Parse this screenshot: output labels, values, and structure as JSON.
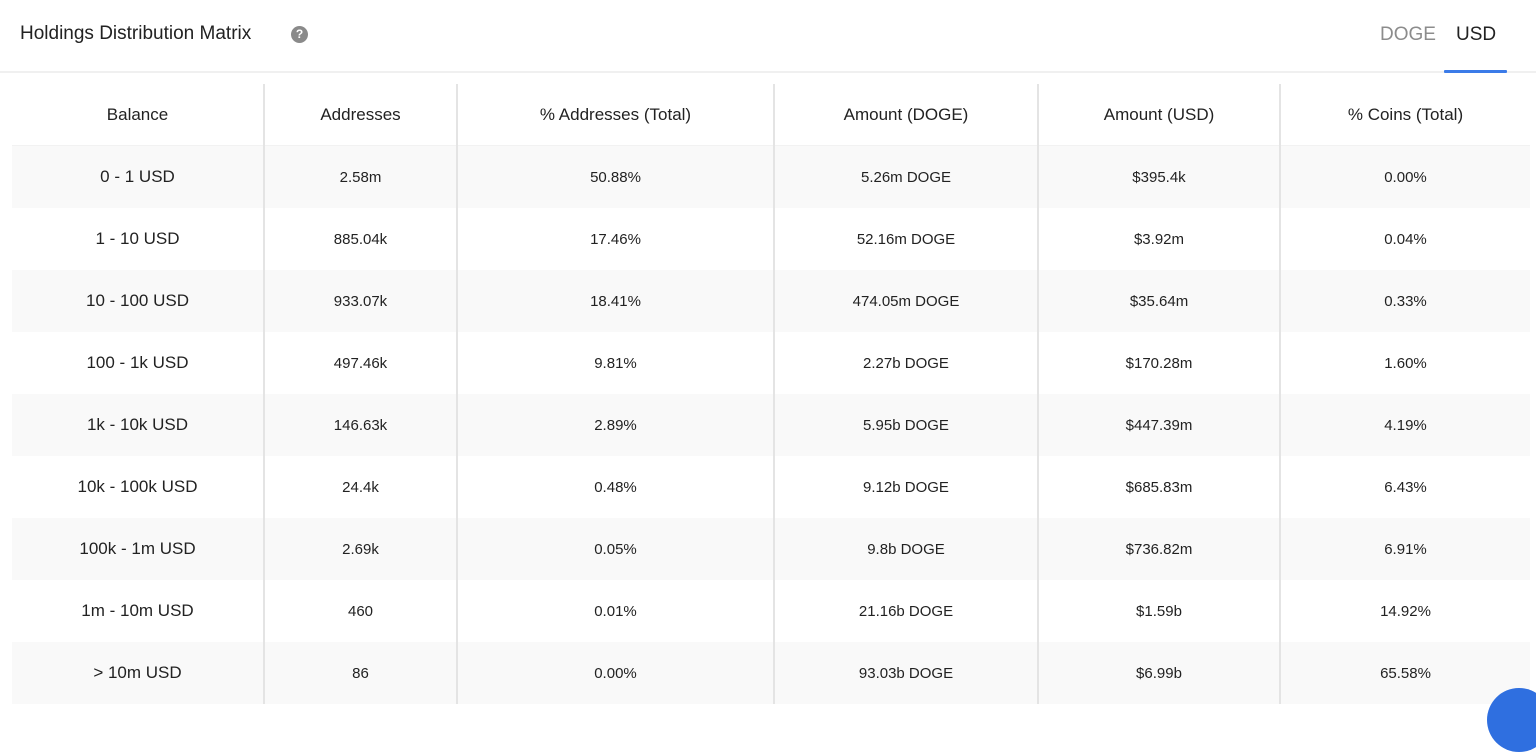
{
  "header": {
    "title": "Holdings Distribution Matrix",
    "help_icon": "question-circle-icon",
    "tabs": [
      {
        "label": "DOGE",
        "active": false
      },
      {
        "label": "USD",
        "active": true
      }
    ],
    "accent": "#3b7be8"
  },
  "table": {
    "columns": [
      "Balance",
      "Addresses",
      "% Addresses (Total)",
      "Amount (DOGE)",
      "Amount (USD)",
      "% Coins (Total)"
    ],
    "rows": [
      [
        "0 - 1 USD",
        "2.58m",
        "50.88%",
        "5.26m DOGE",
        "$395.4k",
        "0.00%"
      ],
      [
        "1 - 10 USD",
        "885.04k",
        "17.46%",
        "52.16m DOGE",
        "$3.92m",
        "0.04%"
      ],
      [
        "10 - 100 USD",
        "933.07k",
        "18.41%",
        "474.05m DOGE",
        "$35.64m",
        "0.33%"
      ],
      [
        "100 - 1k USD",
        "497.46k",
        "9.81%",
        "2.27b DOGE",
        "$170.28m",
        "1.60%"
      ],
      [
        "1k - 10k USD",
        "146.63k",
        "2.89%",
        "5.95b DOGE",
        "$447.39m",
        "4.19%"
      ],
      [
        "10k - 100k USD",
        "24.4k",
        "0.48%",
        "9.12b DOGE",
        "$685.83m",
        "6.43%"
      ],
      [
        "100k - 1m USD",
        "2.69k",
        "0.05%",
        "9.8b DOGE",
        "$736.82m",
        "6.91%"
      ],
      [
        "1m - 10m USD",
        "460",
        "0.01%",
        "21.16b DOGE",
        "$1.59b",
        "14.92%"
      ],
      [
        "> 10m USD",
        "86",
        "0.00%",
        "93.03b DOGE",
        "$6.99b",
        "65.58%"
      ]
    ]
  },
  "chat_widget": {
    "icon": "chat-icon",
    "color": "#2f6fe0"
  }
}
